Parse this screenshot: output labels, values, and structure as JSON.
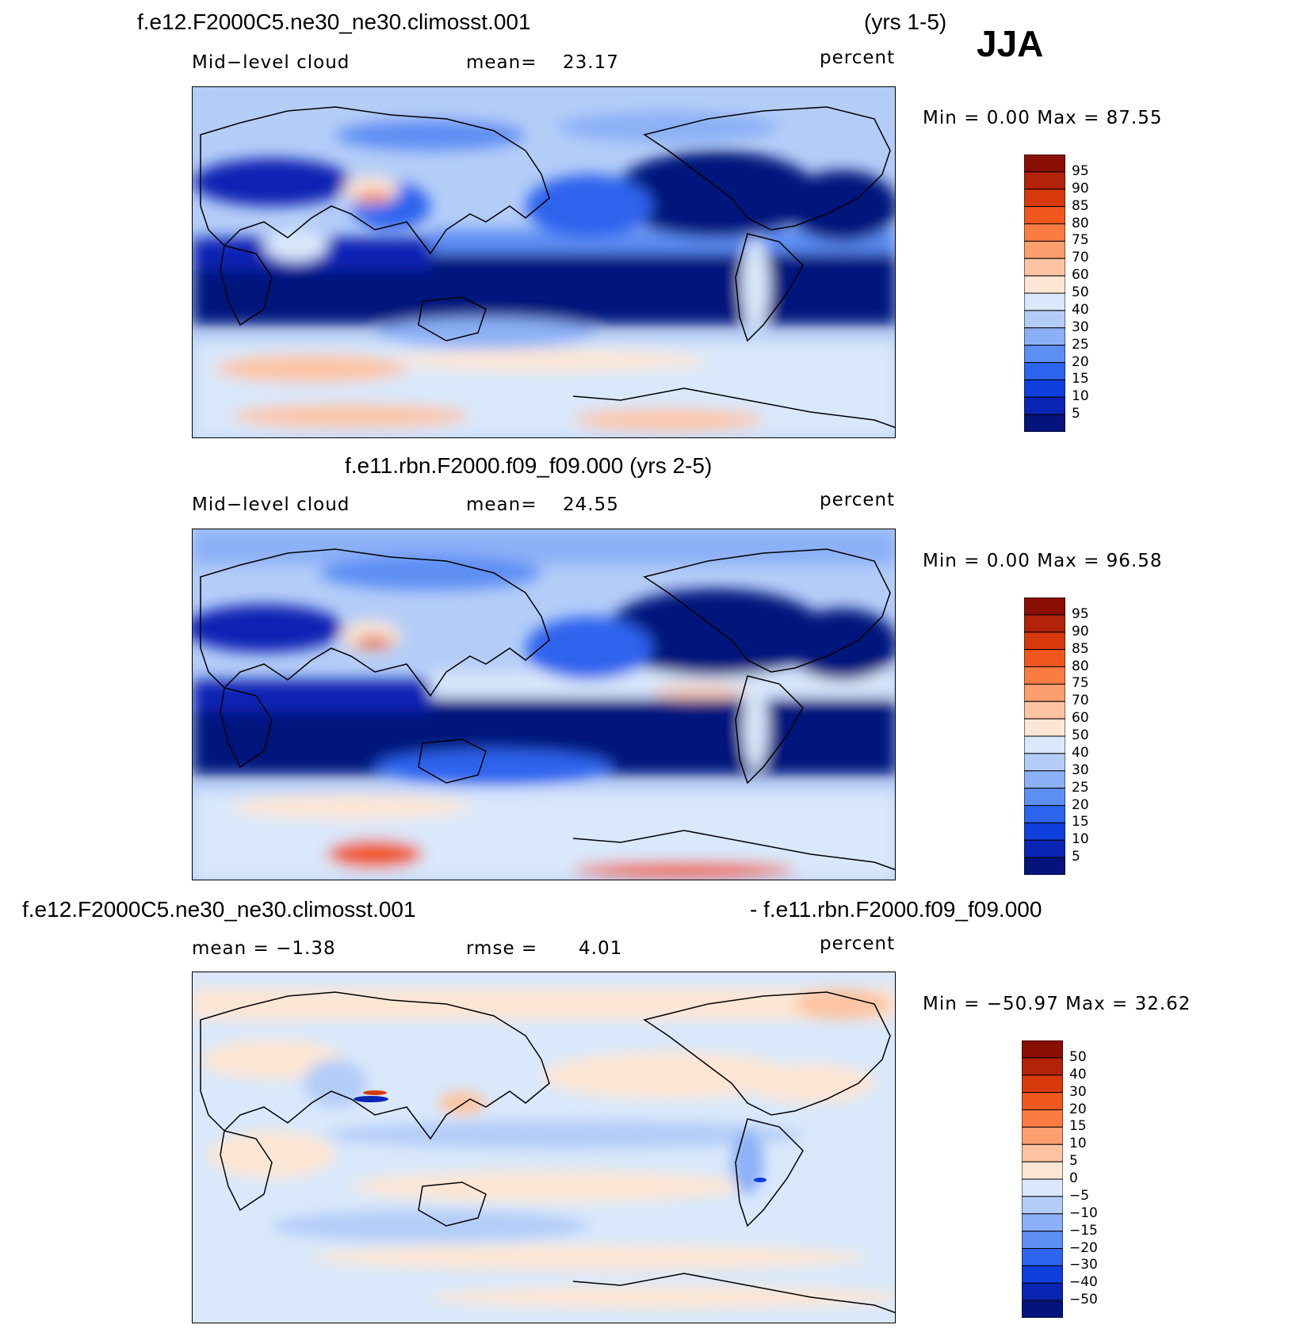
{
  "season": "JJA",
  "variable": "Mid−level cloud",
  "units": "percent",
  "panels": [
    {
      "case": "f.e12.F2000C5.ne30_ne30.climosst.001",
      "years": "(yrs 1-5)",
      "left_stat": "Mid−level cloud",
      "mid_stat_label": "mean=",
      "mid_stat_value": "23.17",
      "units": "percent",
      "minmax": "Min =     0.00 Max =   87.55",
      "min": 0.0,
      "max": 87.55
    },
    {
      "case": "f.e11.rbn.F2000.f09_f09.000 (yrs 2-5)",
      "left_stat": "Mid−level cloud",
      "mid_stat_label": "mean=",
      "mid_stat_value": "24.55",
      "units": "percent",
      "minmax": "Min =     0.00 Max =   96.58",
      "min": 0.0,
      "max": 96.58
    },
    {
      "case_a": "f.e12.F2000C5.ne30_ne30.climosst.001",
      "case_b": "- f.e11.rbn.F2000.f09_f09.000",
      "left_stat": "mean =   −1.38",
      "mid_stat_label": "rmse =",
      "mid_stat_value": "4.01",
      "units": "percent",
      "minmax": "Min = −50.97 Max =   32.62",
      "min": -50.97,
      "max": 32.62
    }
  ],
  "colorbar_abs": {
    "labels": [
      "95",
      "90",
      "85",
      "80",
      "75",
      "70",
      "60",
      "50",
      "40",
      "30",
      "25",
      "20",
      "15",
      "10",
      "5"
    ],
    "colors": [
      "#8b0e04",
      "#b3220a",
      "#d8390c",
      "#f0571d",
      "#fb7b43",
      "#fd9e6e",
      "#fdc4a3",
      "#fde6d4",
      "#d9e8fb",
      "#b4cdf8",
      "#8cb0f7",
      "#5d8ef4",
      "#2d64ee",
      "#0f3fdc",
      "#0a24b4",
      "#05147d"
    ]
  },
  "colorbar_diff": {
    "labels": [
      "50",
      "40",
      "30",
      "20",
      "15",
      "10",
      "5",
      "0",
      "−5",
      "−10",
      "−15",
      "−20",
      "−30",
      "−40",
      "−50"
    ],
    "colors": [
      "#8b0e04",
      "#b3220a",
      "#d8390c",
      "#f0571d",
      "#fb7b43",
      "#fd9e6e",
      "#fdc4a3",
      "#fde6d4",
      "#d9e8fb",
      "#b4cdf8",
      "#8cb0f7",
      "#5d8ef4",
      "#2d64ee",
      "#0f3fdc",
      "#0a24b4",
      "#05147d"
    ]
  }
}
